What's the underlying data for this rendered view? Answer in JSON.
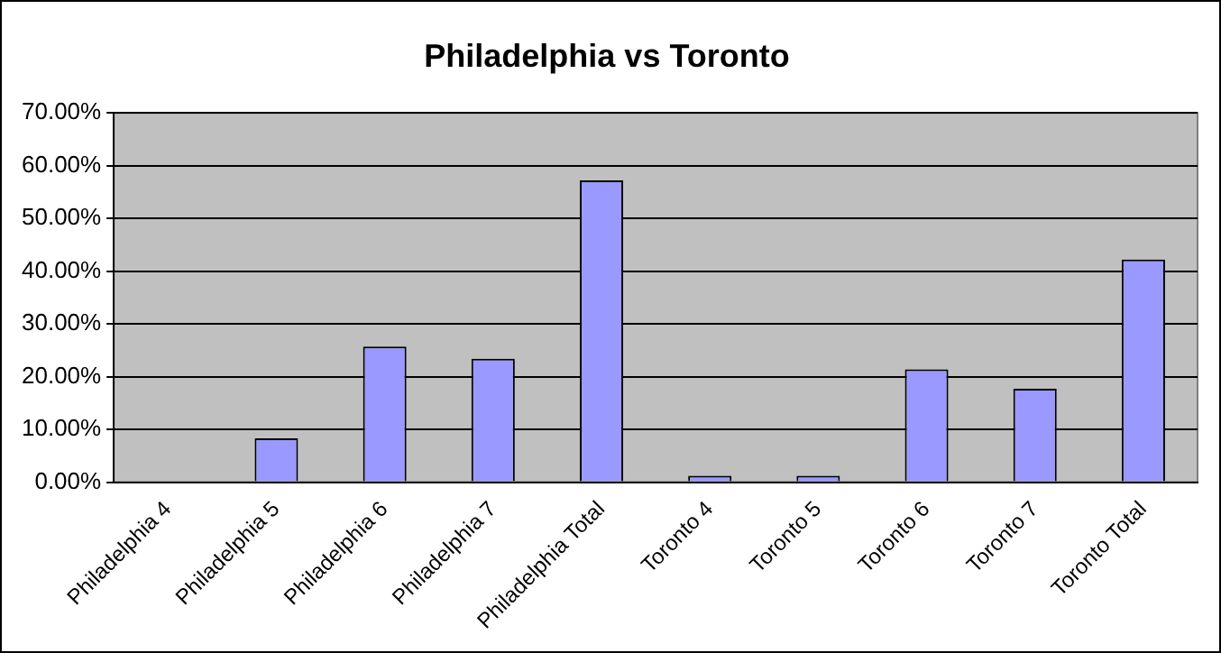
{
  "chart_data": {
    "type": "bar",
    "title": "Philadelphia vs Toronto",
    "categories": [
      "Philadelphia 4",
      "Philadelphia 5",
      "Philadelphia 6",
      "Philadelphia 7",
      "Philadelphia Total",
      "Toronto 4",
      "Toronto 5",
      "Toronto 6",
      "Toronto 7",
      "Toronto Total"
    ],
    "values": [
      0,
      8.3,
      25.7,
      23.4,
      57.2,
      1.2,
      1.2,
      21.4,
      17.7,
      42.2
    ],
    "color": "#9999ff",
    "ylim": [
      0,
      70
    ],
    "yticks": [
      {
        "value": 0,
        "label": "0.00%"
      },
      {
        "value": 10,
        "label": "10.00%"
      },
      {
        "value": 20,
        "label": "20.00%"
      },
      {
        "value": 30,
        "label": "30.00%"
      },
      {
        "value": 40,
        "label": "40.00%"
      },
      {
        "value": 50,
        "label": "50.00%"
      },
      {
        "value": 60,
        "label": "60.00%"
      },
      {
        "value": 70,
        "label": "70.00%"
      }
    ],
    "grid": "y"
  }
}
